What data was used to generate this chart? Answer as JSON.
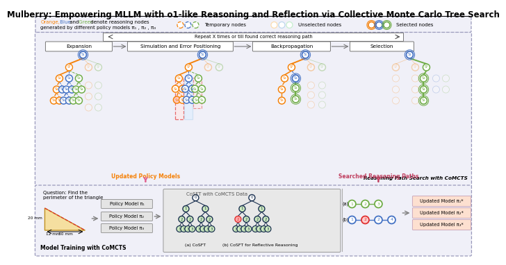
{
  "title": "Mulberry: Empowering MLLM with o1-like Reasoning and Reflection via Collective Monte Carlo Tree Search",
  "title_fontsize": 8.5,
  "bg_color": "#ffffff",
  "legend_box_color": "#f0f0f8",
  "legend_border_color": "#9999bb",
  "orange": "#F5820A",
  "blue": "#4472C4",
  "green": "#70AD47",
  "red": "#E03030",
  "light_orange": "#FCDCB0",
  "light_blue": "#BDD7EE",
  "light_green": "#C6EFCE",
  "dark_blue": "#1F3864",
  "gray": "#808080",
  "light_gray": "#D3D3D3",
  "phase_labels": [
    "Expansion",
    "Simulation and Error Positioning",
    "Backpropagation",
    "Selection"
  ],
  "repeat_text": "Repeat X times or till found correct reasoning path",
  "reasoning_label": "Reasoning Path Search with CoMCTS",
  "updated_label": "Updated Policy Models",
  "searched_label": "Searched Reasoning Paths",
  "model_training_label": "Model Training with CoMCTS",
  "question_text": "Question: Find the\nperimeter of the triangle",
  "triangle_sides": [
    "20 mm",
    "12 mm",
    "30 mm"
  ],
  "policy_models": [
    "Policy Model π₁",
    "Policy Model π₂",
    "Policy Model π₃"
  ],
  "cosft_title": "CoSFT with CoMCTS Data",
  "cosft_label": "(a) CoSFT",
  "cosft_reflect_label": "(b) CoSFT for Reflective Reasoning",
  "updated_models": [
    "Updated Model π₁*",
    "Updated Model π₂*",
    "Updated Model π₃*"
  ],
  "temp_nodes_label": "Temporary nodes",
  "unselected_label": "Unselected nodes",
  "selected_label": "Selected nodes"
}
